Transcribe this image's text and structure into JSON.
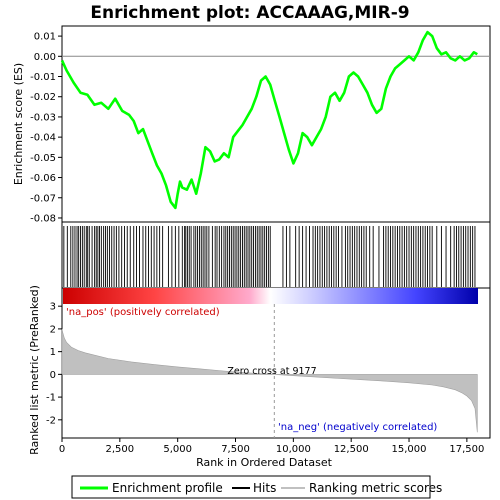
{
  "chart_data": {
    "type": "line",
    "title": "Enrichment plot: ACCAAAG,MIR-9",
    "xlabel": "Rank in Ordered Dataset",
    "xlim": [
      0,
      18500
    ],
    "xticks": [
      0,
      2500,
      5000,
      7500,
      10000,
      12500,
      15000,
      17500
    ],
    "xtick_labels": [
      "0",
      "2,500",
      "5,000",
      "7,500",
      "10,000",
      "12,500",
      "15,000",
      "17,500"
    ],
    "enrichment": {
      "ylabel": "Enrichment score (ES)",
      "ylim": [
        -0.082,
        0.015
      ],
      "yticks": [
        0.01,
        0.0,
        -0.01,
        -0.02,
        -0.03,
        -0.04,
        -0.05,
        -0.06,
        -0.07,
        -0.08
      ],
      "ytick_labels": [
        "0.01",
        "0.00",
        "-0.01",
        "-0.02",
        "-0.03",
        "-0.04",
        "-0.05",
        "-0.06",
        "-0.07",
        "-0.08"
      ],
      "series": [
        {
          "name": "Enrichment profile",
          "color": "#00ff00",
          "x": [
            0,
            200,
            500,
            800,
            1100,
            1400,
            1700,
            2000,
            2300,
            2600,
            2900,
            3100,
            3300,
            3500,
            3700,
            3900,
            4100,
            4300,
            4500,
            4700,
            4900,
            5000,
            5100,
            5200,
            5400,
            5600,
            5800,
            6000,
            6200,
            6400,
            6600,
            6800,
            7000,
            7200,
            7400,
            7600,
            7800,
            8000,
            8200,
            8400,
            8600,
            8800,
            9000,
            9200,
            9400,
            9600,
            9800,
            10000,
            10200,
            10400,
            10600,
            10800,
            11000,
            11200,
            11400,
            11600,
            11800,
            12000,
            12200,
            12400,
            12600,
            12800,
            13000,
            13200,
            13400,
            13600,
            13800,
            14000,
            14200,
            14400,
            14600,
            14800,
            15000,
            15200,
            15400,
            15600,
            15800,
            16000,
            16200,
            16400,
            16600,
            16800,
            17000,
            17200,
            17400,
            17600,
            17800,
            17950
          ],
          "y": [
            -0.002,
            -0.007,
            -0.013,
            -0.018,
            -0.019,
            -0.024,
            -0.023,
            -0.026,
            -0.021,
            -0.027,
            -0.029,
            -0.032,
            -0.038,
            -0.036,
            -0.042,
            -0.048,
            -0.054,
            -0.058,
            -0.064,
            -0.072,
            -0.075,
            -0.068,
            -0.062,
            -0.065,
            -0.066,
            -0.061,
            -0.068,
            -0.058,
            -0.045,
            -0.047,
            -0.052,
            -0.051,
            -0.048,
            -0.05,
            -0.04,
            -0.037,
            -0.034,
            -0.03,
            -0.026,
            -0.02,
            -0.012,
            -0.01,
            -0.014,
            -0.022,
            -0.03,
            -0.038,
            -0.046,
            -0.053,
            -0.048,
            -0.038,
            -0.04,
            -0.044,
            -0.04,
            -0.036,
            -0.03,
            -0.02,
            -0.018,
            -0.022,
            -0.018,
            -0.01,
            -0.008,
            -0.01,
            -0.014,
            -0.018,
            -0.024,
            -0.028,
            -0.026,
            -0.016,
            -0.01,
            -0.006,
            -0.004,
            -0.002,
            0.0,
            -0.002,
            0.002,
            0.008,
            0.012,
            0.01,
            0.004,
            0.001,
            0.002,
            -0.001,
            -0.002,
            0.0,
            -0.002,
            -0.001,
            0.002,
            0.001
          ]
        }
      ]
    },
    "ranked_metric": {
      "ylabel": "Ranked list metric (PreRanked)",
      "ylim": [
        -2.8,
        3.8
      ],
      "yticks": [
        3,
        2,
        1,
        0,
        -1,
        -2
      ],
      "ytick_labels": [
        "3",
        "2",
        "1",
        "0",
        "-1",
        "-2"
      ],
      "series": [
        {
          "name": "Ranking metric scores",
          "color": "#c0c0c0",
          "x": [
            0,
            30,
            100,
            200,
            400,
            700,
            1000,
            1500,
            2000,
            3000,
            4000,
            5000,
            6000,
            7000,
            8000,
            9177,
            10000,
            11000,
            12000,
            13000,
            14000,
            15000,
            16000,
            16500,
            17000,
            17300,
            17500,
            17700,
            17850,
            17950
          ],
          "y": [
            2.0,
            1.85,
            1.6,
            1.4,
            1.2,
            1.05,
            0.95,
            0.82,
            0.7,
            0.55,
            0.43,
            0.33,
            0.24,
            0.15,
            0.07,
            0.0,
            -0.06,
            -0.12,
            -0.18,
            -0.24,
            -0.3,
            -0.37,
            -0.47,
            -0.55,
            -0.68,
            -0.82,
            -0.95,
            -1.15,
            -1.5,
            -2.55
          ]
        }
      ],
      "zero_cross_label": "Zero cross at 9177",
      "zero_cross_rank": 9177,
      "pos_label": "'na_pos' (positively correlated)",
      "neg_label": "'na_neg' (negatively correlated)"
    },
    "hits": {
      "name": "Hits",
      "color": "#000000",
      "positions": [
        80,
        230,
        380,
        470,
        560,
        650,
        720,
        800,
        880,
        960,
        1050,
        1110,
        1180,
        1300,
        1410,
        1480,
        1550,
        1620,
        1700,
        1800,
        1880,
        1960,
        2050,
        2150,
        2250,
        2350,
        2460,
        2580,
        2700,
        2820,
        2950,
        3100,
        3220,
        3350,
        3500,
        3620,
        3740,
        3860,
        3980,
        4100,
        4220,
        4350,
        4600,
        4750,
        4900,
        5050,
        5200,
        5300,
        5350,
        5420,
        5500,
        5580,
        5700,
        5780,
        5860,
        5940,
        6020,
        6100,
        6180,
        6260,
        6350,
        6500,
        6620,
        6700,
        6800,
        6900,
        7000,
        7080,
        7160,
        7240,
        7320,
        7400,
        7480,
        7560,
        7640,
        7720,
        7800,
        7880,
        7960,
        8040,
        8120,
        8200,
        8280,
        8360,
        8440,
        8520,
        8600,
        8680,
        8760,
        8840,
        8920,
        9000,
        9550,
        9700,
        9850,
        10100,
        10250,
        10400,
        10550,
        10700,
        10850,
        10950,
        11050,
        11150,
        11250,
        11350,
        11450,
        11550,
        11650,
        11750,
        11850,
        11950,
        12100,
        12250,
        12350,
        12450,
        12550,
        12650,
        12750,
        12850,
        12950,
        13050,
        13150,
        13300,
        13450,
        13700,
        13900,
        14000,
        14100,
        14200,
        14300,
        14400,
        14500,
        14600,
        14700,
        14800,
        14900,
        15000,
        15100,
        15200,
        15300,
        15400,
        15500,
        15600,
        15700,
        15800,
        15900,
        16000,
        16200,
        16400,
        16600,
        16800,
        16950,
        17050,
        17150,
        17250,
        17350,
        17450,
        17550,
        17650,
        17750,
        17850
      ]
    },
    "legend": [
      {
        "label": "Enrichment profile",
        "color": "#00ff00"
      },
      {
        "label": "Hits",
        "color": "#000000"
      },
      {
        "label": "Ranking metric scores",
        "color": "#c0c0c0"
      }
    ],
    "colors": {
      "gradient_pos": "#ff0000",
      "gradient_mid": "#ffffff",
      "gradient_neg": "#0000ff"
    }
  }
}
